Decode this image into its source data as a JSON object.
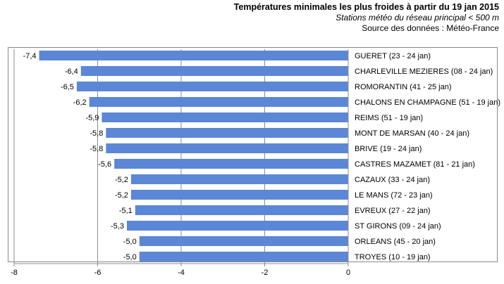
{
  "header": {
    "title": "Températures minimales les plus froides à partir du 19 jan 2015",
    "subtitle": "Stations météo du réseau principal < 500 m",
    "source": "Source des données : Météo-France"
  },
  "chart_data": {
    "type": "bar",
    "orientation": "horizontal",
    "title": "Températures minimales les plus froides à partir du 19 jan 2015",
    "subtitle": "Stations météo du réseau principal < 500 m",
    "source": "Source des données : Météo-France",
    "xlim": [
      -8,
      0
    ],
    "xticks": [
      -8,
      -6,
      -4,
      -2,
      0
    ],
    "xtick_labels": [
      "-8",
      "-6",
      "-4",
      "-2",
      "0"
    ],
    "grid": "vertical",
    "bar_color": "#5b87d6",
    "categories": [
      "GUERET (23 - 24 jan)",
      "CHARLEVILLE MEZIERES (08 - 24 jan)",
      "ROMORANTIN (41 - 25 jan)",
      "CHALONS EN CHAMPAGNE (51 - 19 jan)",
      "REIMS (51 - 19 jan)",
      "MONT DE MARSAN (40 - 24 jan)",
      "BRIVE (19 - 24 jan)",
      "CASTRES MAZAMET (81 - 21 jan)",
      "CAZAUX (33 - 24 jan)",
      "LE MANS (72 - 23 jan)",
      "EVREUX (27 - 22 jan)",
      "ST GIRONS (09 - 24 jan)",
      "ORLEANS (45 - 20 jan)",
      "TROYES (10 - 19 jan)"
    ],
    "values": [
      -7.4,
      -6.4,
      -6.5,
      -6.2,
      -5.9,
      -5.8,
      -5.8,
      -5.6,
      -5.2,
      -5.2,
      -5.1,
      -5.3,
      -5.0,
      -5.0
    ],
    "value_labels": [
      "-7,4",
      "-6,4",
      "-6,5",
      "-6,2",
      "-5,9",
      "-5,8",
      "-5,8",
      "-5,6",
      "-5,2",
      "-5,2",
      "-5,1",
      "-5,3",
      "-5,0",
      "-5,0"
    ]
  }
}
